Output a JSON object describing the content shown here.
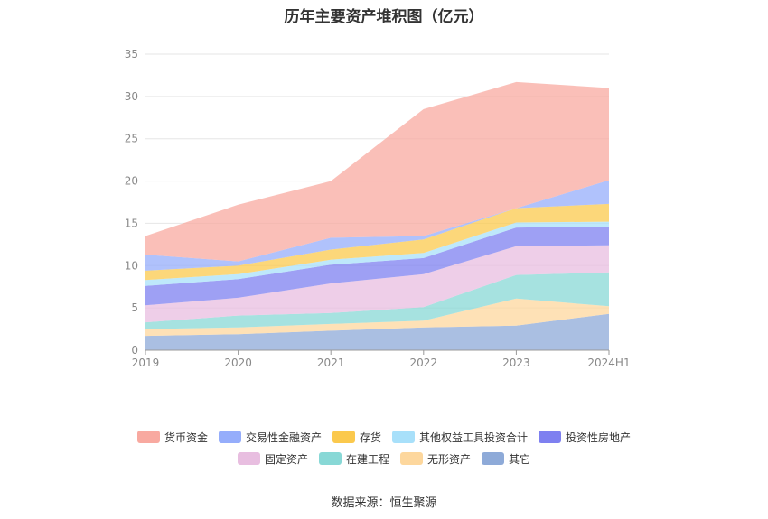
{
  "chart_data": {
    "type": "area",
    "title": "历年主要资产堆积图（亿元）",
    "categories": [
      "2019",
      "2020",
      "2021",
      "2022",
      "2023",
      "2024H1"
    ],
    "ylim": [
      0,
      35
    ],
    "yticks": [
      0,
      5,
      10,
      15,
      20,
      25,
      30,
      35
    ],
    "grid": true,
    "stacked": true,
    "legend_position": "bottom",
    "series": [
      {
        "name": "其它",
        "color": "#8eaad8",
        "values": [
          1.7,
          1.9,
          2.3,
          2.7,
          2.9,
          4.3
        ]
      },
      {
        "name": "无形资产",
        "color": "#fdd79d",
        "values": [
          0.8,
          0.8,
          0.8,
          0.8,
          3.2,
          0.9
        ]
      },
      {
        "name": "在建工程",
        "color": "#88d8d6",
        "values": [
          0.8,
          1.4,
          1.3,
          1.6,
          2.8,
          4.0
        ]
      },
      {
        "name": "固定资产",
        "color": "#e8bee0",
        "values": [
          2.0,
          2.1,
          3.5,
          3.9,
          3.4,
          3.2
        ]
      },
      {
        "name": "投资性房地产",
        "color": "#7e80f0",
        "values": [
          2.3,
          2.2,
          2.2,
          1.9,
          2.2,
          2.2
        ]
      },
      {
        "name": "其他权益工具投资合计",
        "color": "#a8e0fa",
        "values": [
          0.7,
          0.6,
          0.6,
          0.6,
          0.6,
          0.6
        ]
      },
      {
        "name": "存货",
        "color": "#fbc94d",
        "values": [
          1.1,
          1.0,
          1.2,
          1.6,
          1.7,
          2.1
        ]
      },
      {
        "name": "交易性金融资产",
        "color": "#95adfb",
        "values": [
          1.9,
          0.5,
          1.4,
          0.4,
          0.0,
          2.8
        ]
      },
      {
        "name": "货币资金",
        "color": "#f8a9a0",
        "values": [
          2.2,
          6.7,
          6.7,
          15.0,
          14.9,
          10.9
        ]
      }
    ]
  },
  "legend_order": [
    "货币资金",
    "交易性金融资产",
    "存货",
    "其他权益工具投资合计",
    "投资性房地产",
    "固定资产",
    "在建工程",
    "无形资产",
    "其它"
  ],
  "source": "数据来源：恒生聚源"
}
